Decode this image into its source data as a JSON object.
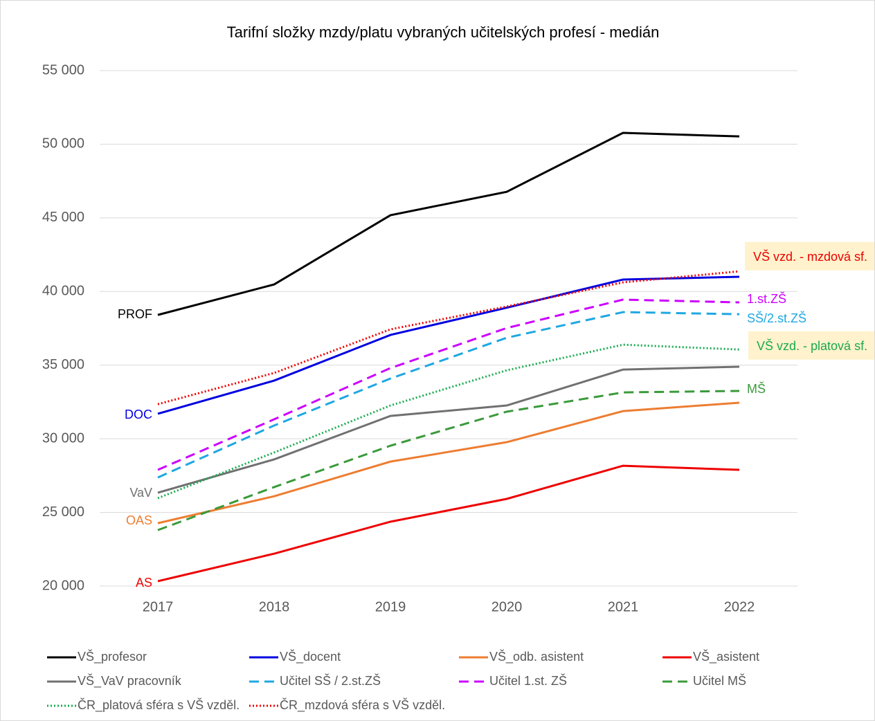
{
  "chart_data": {
    "type": "line",
    "title": "Tarifní složky mzdy/platu vybraných učitelských profesí - medián",
    "categories": [
      "2017",
      "2018",
      "2019",
      "2020",
      "2021",
      "2022"
    ],
    "ylim": [
      20000,
      55000
    ],
    "yticks": [
      {
        "value": 20000,
        "label": "20 000"
      },
      {
        "value": 25000,
        "label": "25 000"
      },
      {
        "value": 30000,
        "label": "30 000"
      },
      {
        "value": 35000,
        "label": "35 000"
      },
      {
        "value": 40000,
        "label": "40 000"
      },
      {
        "value": 45000,
        "label": "45 000"
      },
      {
        "value": 50000,
        "label": "50 000"
      },
      {
        "value": 55000,
        "label": "55 000"
      }
    ],
    "grid": true,
    "legend": "bottom",
    "series": [
      {
        "name": "VŠ_profesor",
        "color": "#000000",
        "dash": "solid",
        "values": [
          38410,
          40480,
          45180,
          46770,
          50770,
          50530
        ]
      },
      {
        "name": "VŠ_docent",
        "color": "#0000e0",
        "dash": "solid",
        "values": [
          31700,
          33950,
          37050,
          38900,
          40810,
          41000
        ]
      },
      {
        "name": "VŠ_odb. asistent",
        "color": "#ed7d31",
        "dash": "solid",
        "values": [
          24270,
          26100,
          28450,
          29770,
          31880,
          32450
        ]
      },
      {
        "name": "VŠ_asistent",
        "color": "#ee0000",
        "dash": "solid",
        "values": [
          20330,
          22200,
          24370,
          25920,
          28170,
          27890
        ]
      },
      {
        "name": "VŠ_VaV pracovník",
        "color": "#707070",
        "dash": "solid",
        "values": [
          26340,
          28600,
          31550,
          32260,
          34700,
          34890
        ]
      },
      {
        "name": "Učitel SŠ / 2.st.ZŠ",
        "color": "#1ea7e1",
        "dash": "dashed",
        "values": [
          27370,
          30900,
          34090,
          36860,
          38600,
          38460
        ]
      },
      {
        "name": "Učitel 1.st. ZŠ",
        "color": "#cc00ff",
        "dash": "dashed",
        "values": [
          27890,
          31320,
          34800,
          37520,
          39450,
          39260
        ]
      },
      {
        "name": "Učitel MŠ",
        "color": "#3a9a3a",
        "dash": "dashed",
        "values": [
          23800,
          26720,
          29530,
          31840,
          33150,
          33250
        ]
      },
      {
        "name": "ČR_platová sféra s VŠ vzděl.",
        "color": "#1aaa50",
        "dash": "dotted",
        "values": [
          25970,
          29070,
          32260,
          34650,
          36390,
          36060
        ]
      },
      {
        "name": "ČR_mzdová sféra s VŠ vzděl.",
        "color": "#ee0000",
        "dash": "dotted",
        "values": [
          32350,
          34470,
          37430,
          38980,
          40620,
          41370
        ]
      }
    ],
    "annotations": [
      {
        "text": "PROF",
        "color": "#000000"
      },
      {
        "text": "DOC",
        "color": "#0000e0"
      },
      {
        "text": "VaV",
        "color": "#707070"
      },
      {
        "text": "OAS",
        "color": "#ed7d31"
      },
      {
        "text": "AS",
        "color": "#ee0000"
      },
      {
        "text": "VŠ vzd. - mzdová sf.",
        "color": "#ee0000",
        "box": true
      },
      {
        "text": "1.st.ZŠ",
        "color": "#cc00ff"
      },
      {
        "text": "SŠ/2.st.ZŠ",
        "color": "#1ea7e1"
      },
      {
        "text": "VŠ vzd. - platová sf.",
        "color": "#1aaa50",
        "box": true
      },
      {
        "text": "MŠ",
        "color": "#3a9a3a"
      }
    ]
  }
}
